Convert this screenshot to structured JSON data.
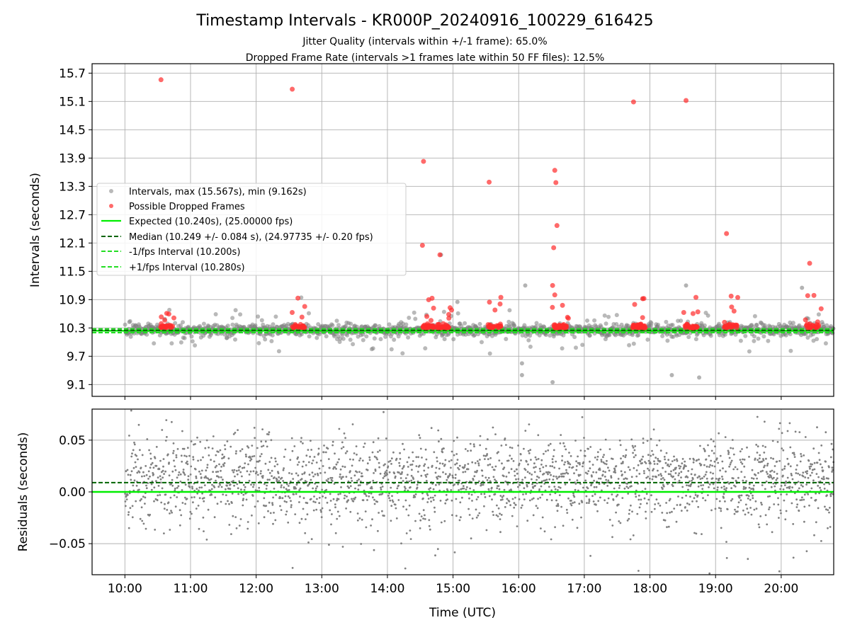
{
  "chart_data": [
    {
      "type": "scatter",
      "title": "Timestamp Intervals - KR000P_20240916_100229_616425",
      "subtitle_1": "Jitter Quality (intervals within +/-1 frame): 65.0%",
      "subtitle_2": "Dropped Frame Rate (intervals >1 frames late within 50 FF files): 12.5%",
      "ylabel": "Intervals (seconds)",
      "ylim": [
        8.85,
        15.9
      ],
      "x_range_hours": [
        9.5,
        20.8
      ],
      "yticks": [
        "9.1",
        "9.7",
        "10.3",
        "10.9",
        "11.5",
        "12.1",
        "12.7",
        "13.3",
        "13.9",
        "14.5",
        "15.1",
        "15.7"
      ],
      "grid": true,
      "legend_position": "left",
      "legend": [
        "Intervals, max (15.567s), min (9.162s)",
        "Possible Dropped Frames",
        "Expected (10.240s), (25.00000 fps)",
        "Median (10.249 +/- 0.084 s), (24.97735 +/- 0.20 fps)",
        "-1/fps Interval (10.200s)",
        "+1/fps Interval (10.280s)"
      ],
      "expected": 10.24,
      "median": 10.249,
      "minus_interval": 10.2,
      "plus_interval": 10.28,
      "series_dropped_outliers": {
        "x": [
          "10:33",
          "12:33",
          "14:33",
          "15:33",
          "16:33",
          "16:34",
          "16:35",
          "16:32",
          "14:32",
          "14:48",
          "17:45",
          "18:33",
          "19:10",
          "20:26",
          "16:31",
          "16:33"
        ],
        "y": [
          15.56,
          15.36,
          13.83,
          13.39,
          13.64,
          13.38,
          12.47,
          12.0,
          12.05,
          11.85,
          15.09,
          15.12,
          12.3,
          11.67,
          11.2,
          11.0
        ]
      },
      "series_grey_outliers": {
        "x": [
          "14:49",
          "16:06",
          "15:04",
          "16:03",
          "16:03",
          "16:31",
          "18:20",
          "18:45",
          "18:33",
          "20:19"
        ],
        "y": [
          11.85,
          11.2,
          10.85,
          9.55,
          9.3,
          9.15,
          9.3,
          9.25,
          11.2,
          11.15
        ]
      }
    },
    {
      "type": "scatter",
      "ylabel": "Residuals (seconds)",
      "xlabel": "Time (UTC)",
      "ylim": [
        -0.08,
        0.08
      ],
      "yticks": [
        "0.05",
        "0.00",
        "−0.05"
      ],
      "xticks": [
        "10:00",
        "11:00",
        "12:00",
        "13:00",
        "14:00",
        "15:00",
        "16:00",
        "17:00",
        "18:00",
        "19:00",
        "20:00"
      ],
      "expected_residual": 0.0,
      "median_residual": 0.009,
      "grid": true
    }
  ],
  "colors": {
    "points": "#808080",
    "dropped": "#ff2b2b",
    "expected": "#00ee00",
    "median": "#006400",
    "interval": "#22dd22",
    "grid": "#b0b0b0"
  }
}
